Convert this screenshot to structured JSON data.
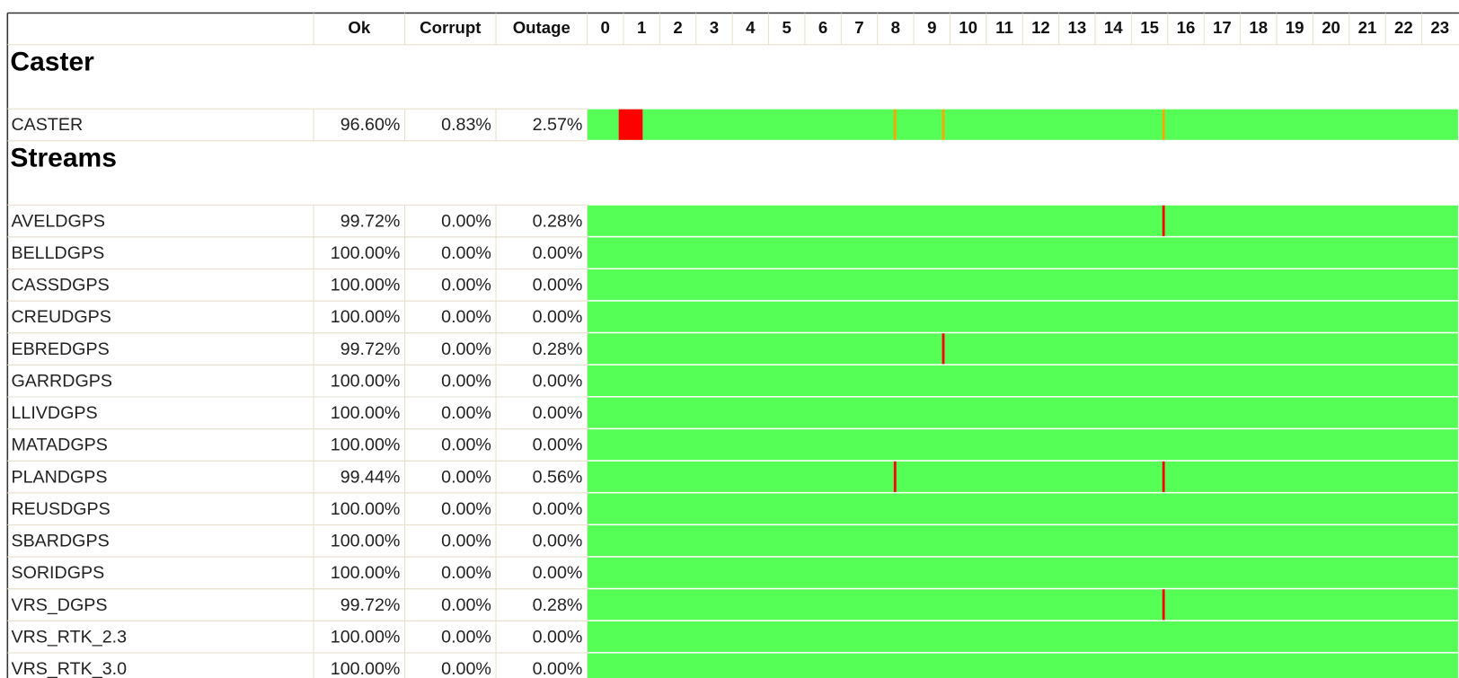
{
  "header": {
    "columns": [
      "Ok",
      "Corrupt",
      "Outage"
    ],
    "hours": [
      "0",
      "1",
      "2",
      "3",
      "4",
      "5",
      "6",
      "7",
      "8",
      "9",
      "10",
      "11",
      "12",
      "13",
      "14",
      "15",
      "16",
      "17",
      "18",
      "19",
      "20",
      "21",
      "22",
      "23"
    ]
  },
  "bar_color": "#55ff55",
  "sections": [
    {
      "title": "Caster",
      "rows": [
        {
          "name": "CASTER",
          "ok": "96.60%",
          "corrupt": "0.83%",
          "outage": "2.57%",
          "events": [
            {
              "start": 0.87,
              "end": 1.53,
              "color": "#ff0000"
            },
            {
              "start": 8.45,
              "end": 8.52,
              "color": "#ffa500"
            },
            {
              "start": 9.78,
              "end": 9.85,
              "color": "#ffa500"
            },
            {
              "start": 15.85,
              "end": 15.92,
              "color": "#ffa500"
            }
          ]
        }
      ]
    },
    {
      "title": "Streams",
      "rows": [
        {
          "name": "AVELDGPS",
          "ok": "99.72%",
          "corrupt": "0.00%",
          "outage": "0.28%",
          "events": [
            {
              "start": 15.85,
              "end": 15.92,
              "color": "#ff0000"
            }
          ]
        },
        {
          "name": "BELLDGPS",
          "ok": "100.00%",
          "corrupt": "0.00%",
          "outage": "0.00%",
          "events": []
        },
        {
          "name": "CASSDGPS",
          "ok": "100.00%",
          "corrupt": "0.00%",
          "outage": "0.00%",
          "events": []
        },
        {
          "name": "CREUDGPS",
          "ok": "100.00%",
          "corrupt": "0.00%",
          "outage": "0.00%",
          "events": []
        },
        {
          "name": "EBREDGPS",
          "ok": "99.72%",
          "corrupt": "0.00%",
          "outage": "0.28%",
          "events": [
            {
              "start": 9.78,
              "end": 9.85,
              "color": "#ff0000"
            }
          ]
        },
        {
          "name": "GARRDGPS",
          "ok": "100.00%",
          "corrupt": "0.00%",
          "outage": "0.00%",
          "events": []
        },
        {
          "name": "LLIVDGPS",
          "ok": "100.00%",
          "corrupt": "0.00%",
          "outage": "0.00%",
          "events": []
        },
        {
          "name": "MATADGPS",
          "ok": "100.00%",
          "corrupt": "0.00%",
          "outage": "0.00%",
          "events": []
        },
        {
          "name": "PLANDGPS",
          "ok": "99.44%",
          "corrupt": "0.00%",
          "outage": "0.56%",
          "events": [
            {
              "start": 8.45,
              "end": 8.52,
              "color": "#ff0000"
            },
            {
              "start": 15.85,
              "end": 15.92,
              "color": "#ff0000"
            }
          ]
        },
        {
          "name": "REUSDGPS",
          "ok": "100.00%",
          "corrupt": "0.00%",
          "outage": "0.00%",
          "events": []
        },
        {
          "name": "SBARDGPS",
          "ok": "100.00%",
          "corrupt": "0.00%",
          "outage": "0.00%",
          "events": []
        },
        {
          "name": "SORIDGPS",
          "ok": "100.00%",
          "corrupt": "0.00%",
          "outage": "0.00%",
          "events": []
        },
        {
          "name": "VRS_DGPS",
          "ok": "99.72%",
          "corrupt": "0.00%",
          "outage": "0.28%",
          "events": [
            {
              "start": 15.85,
              "end": 15.92,
              "color": "#ff0000"
            }
          ]
        },
        {
          "name": "VRS_RTK_2.3",
          "ok": "100.00%",
          "corrupt": "0.00%",
          "outage": "0.00%",
          "events": []
        },
        {
          "name": "VRS_RTK_3.0",
          "ok": "100.00%",
          "corrupt": "0.00%",
          "outage": "0.00%",
          "events": []
        }
      ]
    }
  ]
}
